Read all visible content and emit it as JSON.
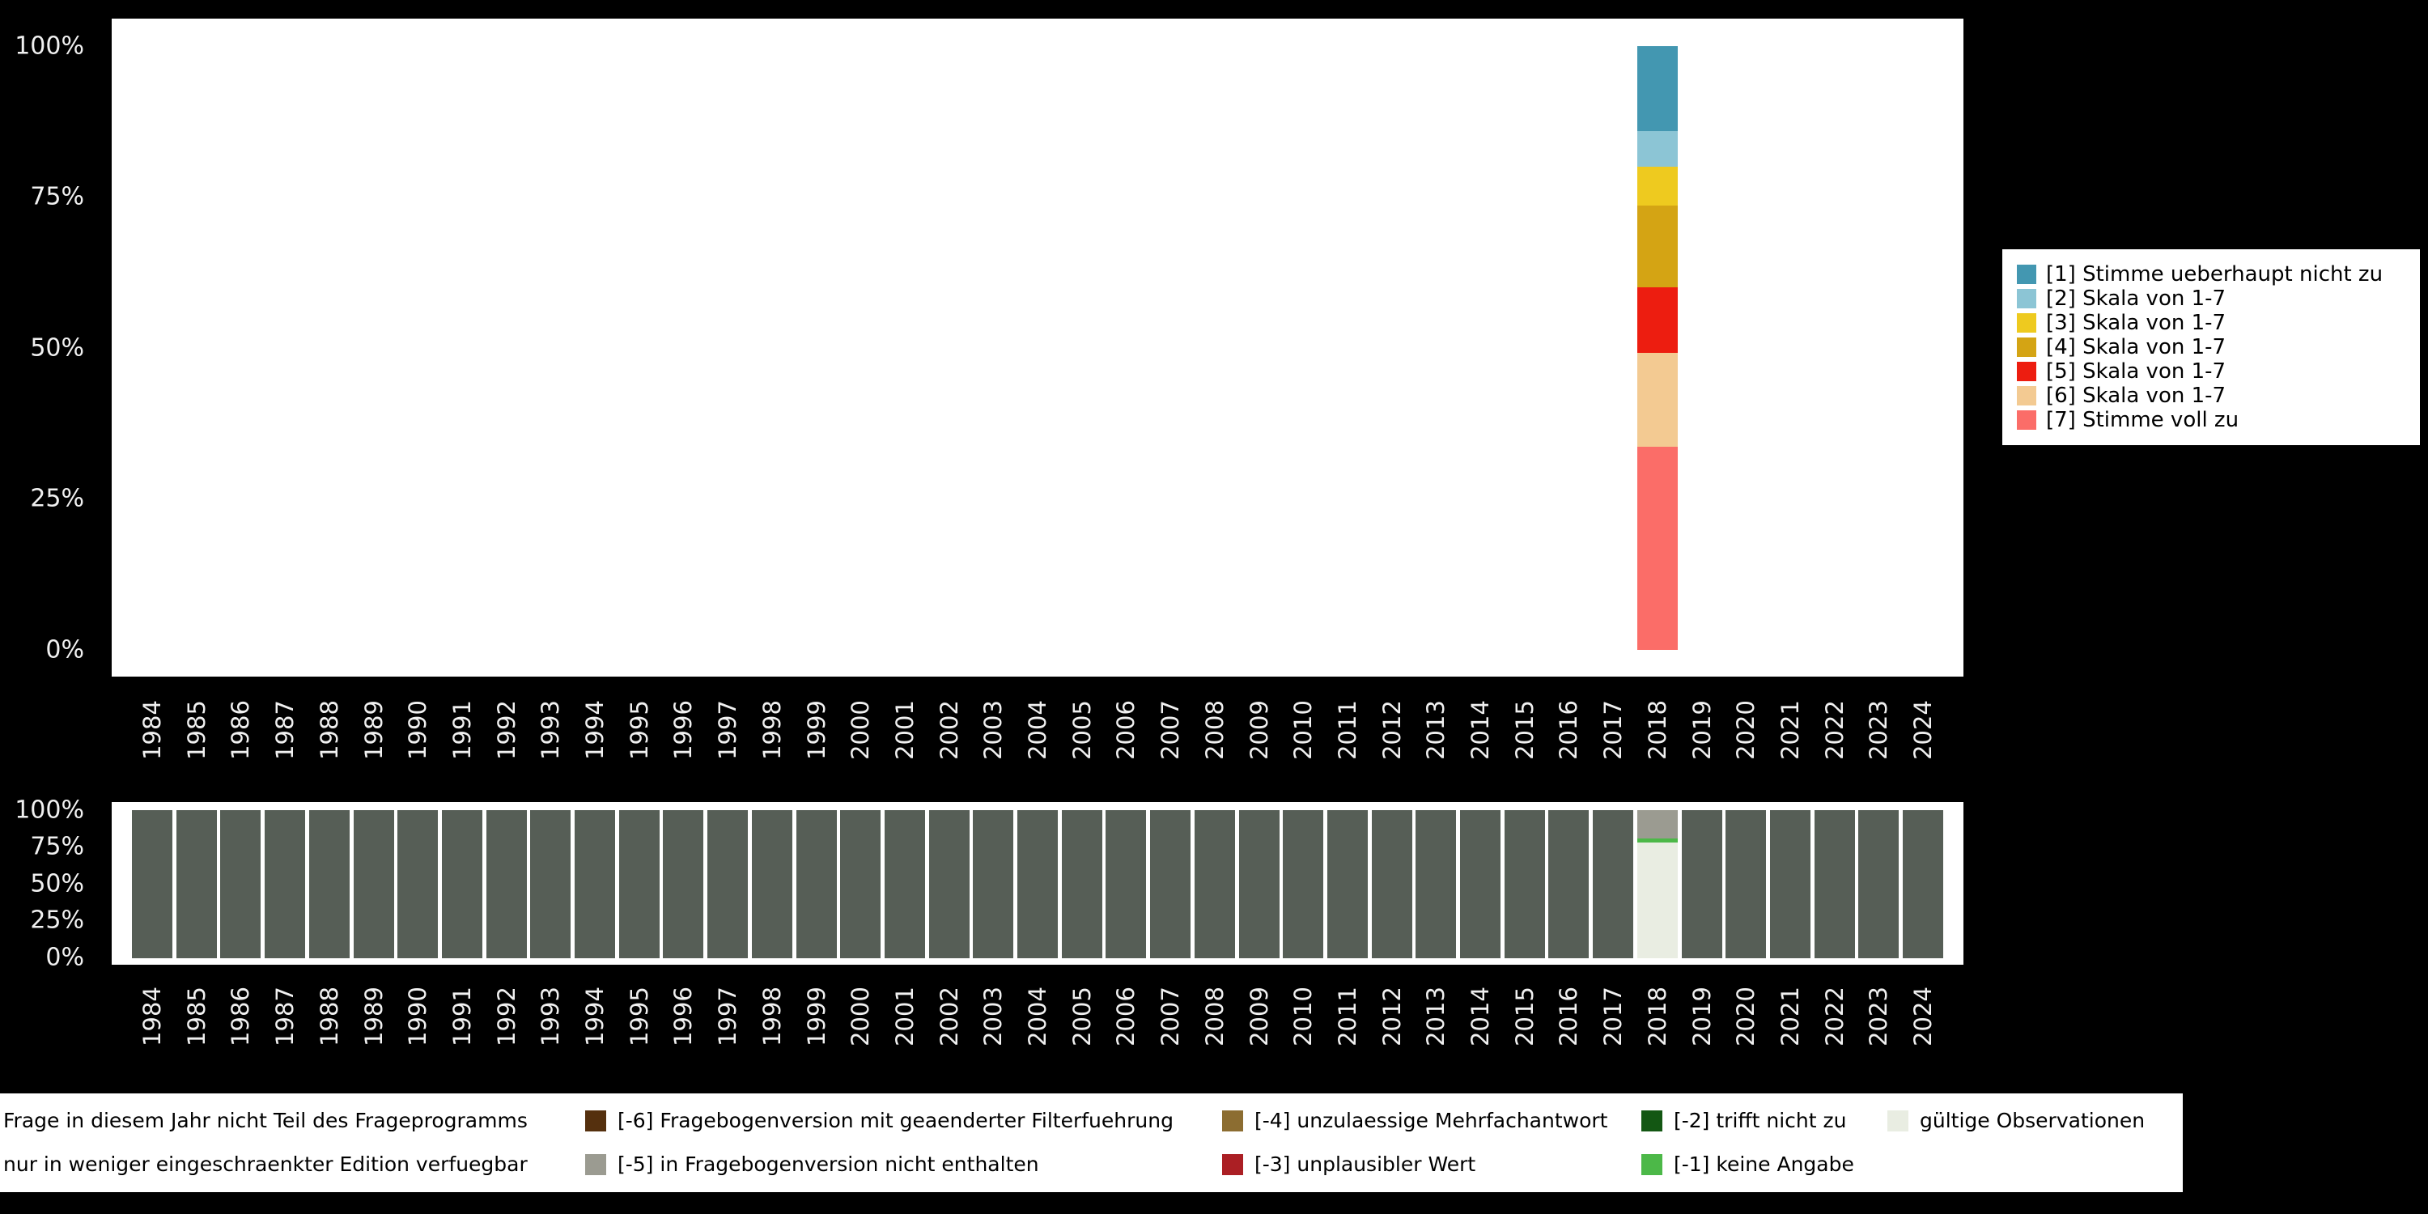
{
  "canvas": {
    "background": "#000000",
    "plot_background": "#ffffff",
    "axis_text_color": "#f0f0f0",
    "legend_text_color": "#000000",
    "legend_background": "#ffffff"
  },
  "years": [
    "1984",
    "1985",
    "1986",
    "1987",
    "1988",
    "1989",
    "1990",
    "1991",
    "1992",
    "1993",
    "1994",
    "1995",
    "1996",
    "1997",
    "1998",
    "1999",
    "2000",
    "2001",
    "2002",
    "2003",
    "2004",
    "2005",
    "2006",
    "2007",
    "2008",
    "2009",
    "2010",
    "2011",
    "2012",
    "2013",
    "2014",
    "2015",
    "2016",
    "2017",
    "2018",
    "2019",
    "2020",
    "2021",
    "2022",
    "2023",
    "2024"
  ],
  "y_tick_labels": [
    "0%",
    "25%",
    "50%",
    "75%",
    "100%"
  ],
  "chart_data": [
    {
      "id": "responses",
      "type": "bar",
      "stacked": true,
      "orientation": "vertical",
      "title": "",
      "xlabel": "",
      "ylabel": "",
      "ylim": [
        0,
        100
      ],
      "yticks": [
        "0%",
        "25%",
        "50%",
        "75%",
        "100%"
      ],
      "x_categories": [
        "1984",
        "1985",
        "1986",
        "1987",
        "1988",
        "1989",
        "1990",
        "1991",
        "1992",
        "1993",
        "1994",
        "1995",
        "1996",
        "1997",
        "1998",
        "1999",
        "2000",
        "2001",
        "2002",
        "2003",
        "2004",
        "2005",
        "2006",
        "2007",
        "2008",
        "2009",
        "2010",
        "2011",
        "2012",
        "2013",
        "2014",
        "2015",
        "2016",
        "2017",
        "2018",
        "2019",
        "2020",
        "2021",
        "2022",
        "2023",
        "2024"
      ],
      "legend_position": "right",
      "grid": false,
      "series": [
        {
          "label": "[1] Stimme ueberhaupt nicht zu",
          "color": "#4397b1",
          "values": {
            "2018": 14.1
          }
        },
        {
          "label": "[2] Skala von 1-7",
          "color": "#8cc5d5",
          "values": {
            "2018": 5.9
          }
        },
        {
          "label": "[3] Skala von 1-7",
          "color": "#eeca1f",
          "values": {
            "2018": 6.4
          }
        },
        {
          "label": "[4] Skala von 1-7",
          "color": "#d4a414",
          "values": {
            "2018": 13.6
          }
        },
        {
          "label": "[5] Skala von 1-7",
          "color": "#ed1d10",
          "values": {
            "2018": 10.8
          }
        },
        {
          "label": "[6] Skala von 1-7",
          "color": "#f3ca92",
          "values": {
            "2018": 15.6
          }
        },
        {
          "label": "[7] Stimme voll zu",
          "color": "#fb6d68",
          "values": {
            "2018": 33.6
          }
        }
      ]
    },
    {
      "id": "missings",
      "type": "bar",
      "stacked": true,
      "orientation": "vertical",
      "title": "",
      "xlabel": "",
      "ylabel": "",
      "ylim": [
        0,
        100
      ],
      "yticks": [
        "0%",
        "25%",
        "50%",
        "75%",
        "100%"
      ],
      "legend_position": "bottom",
      "grid": false,
      "series": [
        {
          "label": "Frage in diesem Jahr nicht Teil des Frageprogramms",
          "color": "#565e56",
          "values": {
            "1984": 100,
            "1985": 100,
            "1986": 100,
            "1987": 100,
            "1988": 100,
            "1989": 100,
            "1990": 100,
            "1991": 100,
            "1992": 100,
            "1993": 100,
            "1994": 100,
            "1995": 100,
            "1996": 100,
            "1997": 100,
            "1998": 100,
            "1999": 100,
            "2000": 100,
            "2001": 100,
            "2002": 100,
            "2003": 100,
            "2004": 100,
            "2005": 100,
            "2006": 100,
            "2007": 100,
            "2008": 100,
            "2009": 100,
            "2010": 100,
            "2011": 100,
            "2012": 100,
            "2013": 100,
            "2014": 100,
            "2015": 100,
            "2016": 100,
            "2017": 100,
            "2019": 100,
            "2020": 100,
            "2021": 100,
            "2022": 100,
            "2023": 100,
            "2024": 100
          }
        },
        {
          "label": "[-5] in Fragebogenversion nicht enthalten",
          "color": "#9b9b91",
          "values": {
            "2018": 19
          }
        },
        {
          "label": "[-1] keine Angabe",
          "color": "#4cb848",
          "values": {
            "2018": 3
          }
        },
        {
          "label": "gültige Observationen",
          "color": "#e9ede2",
          "values": {
            "2018": 78
          }
        }
      ]
    }
  ],
  "legend_right": {
    "items": [
      {
        "label": "[1] Stimme ueberhaupt nicht zu",
        "color": "#4397b1"
      },
      {
        "label": "[2] Skala von 1-7",
        "color": "#8cc5d5"
      },
      {
        "label": "[3] Skala von 1-7",
        "color": "#eeca1f"
      },
      {
        "label": "[4] Skala von 1-7",
        "color": "#d4a414"
      },
      {
        "label": "[5] Skala von 1-7",
        "color": "#ed1d10"
      },
      {
        "label": "[6] Skala von 1-7",
        "color": "#f3ca92"
      },
      {
        "label": "[7] Stimme voll zu",
        "color": "#fb6d68"
      }
    ]
  },
  "legend_bottom": {
    "rows": [
      [
        {
          "label": "Frage in diesem Jahr nicht Teil des Frageprogramms",
          "color": null
        },
        {
          "label": "[-6] Fragebogenversion mit geaenderter Filterfuehrung",
          "color": "#55300e"
        },
        {
          "label": "[-4] unzulaessige Mehrfachantwort",
          "color": "#8c6d31"
        },
        {
          "label": "[-2] trifft nicht zu",
          "color": "#135713"
        },
        {
          "label": "gültige Observationen",
          "color": "#e9ede2"
        }
      ],
      [
        {
          "label": "nur in weniger eingeschraenkter Edition verfuegbar",
          "color": null
        },
        {
          "label": "[-5] in Fragebogenversion nicht enthalten",
          "color": "#9b9b91"
        },
        {
          "label": "[-3] unplausibler Wert",
          "color": "#ab1f24"
        },
        {
          "label": "[-1] keine Angabe",
          "color": "#4cb848"
        }
      ]
    ]
  }
}
